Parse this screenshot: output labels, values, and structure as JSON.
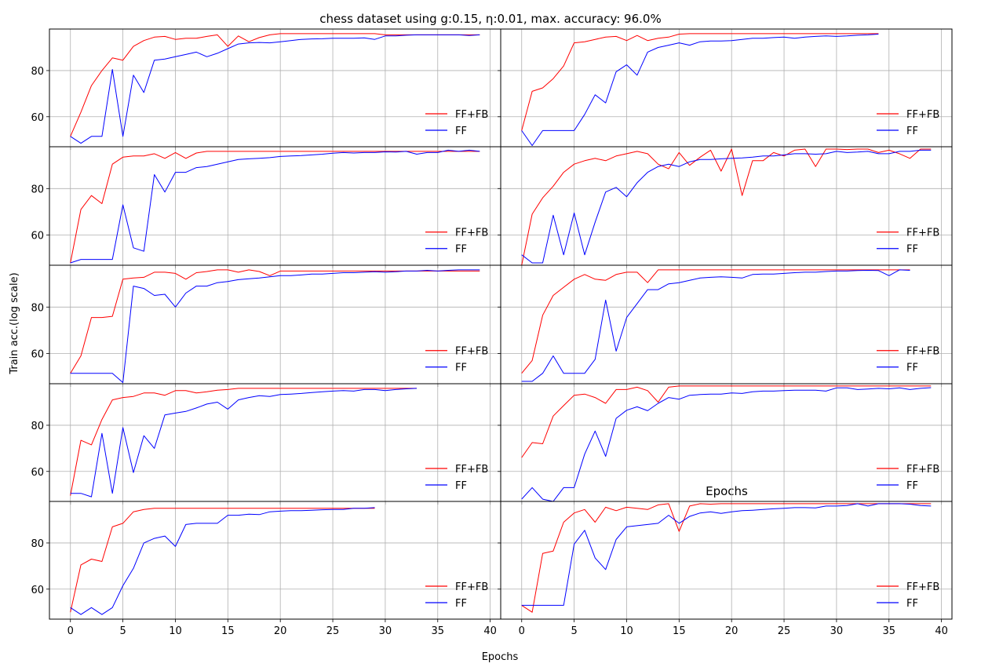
{
  "figure": {
    "title": "chess dataset using g:0.15, η:0.01, max. accuracy: 96.0%",
    "ylabel": "Train acc.(log scale)",
    "xlabel": "Epochs",
    "inner_label": "Epochs",
    "colors": {
      "ffb": "#ff0000",
      "ff": "#0000ff",
      "grid": "#b0b0b0",
      "axis": "#000000"
    }
  },
  "chart_data": {
    "type": "line",
    "xlim": [
      -2,
      41
    ],
    "ylim": [
      47,
      98
    ],
    "x_ticks": [
      0,
      5,
      10,
      15,
      20,
      25,
      30,
      35,
      40
    ],
    "y_ticks": [
      60,
      80
    ],
    "grid": true,
    "legend": [
      "FF+FB",
      "FF"
    ],
    "panels": [
      {
        "series": [
          {
            "name": "FF+FB",
            "y": [
              51.5,
              62,
              73.5,
              80,
              85.5,
              84.5,
              90.5,
              93,
              94.5,
              94.8,
              93.5,
              94,
              94,
              94.8,
              95.5,
              90.5,
              95,
              92.5,
              94.3,
              95.5,
              96,
              96,
              96,
              96,
              96,
              96,
              96,
              96,
              96,
              96,
              95.5,
              95.5,
              95.5,
              95.5,
              95.5,
              95.5,
              95.5,
              95.5,
              95.5,
              95.5
            ]
          },
          {
            "name": "FF",
            "y": [
              51.5,
              48.5,
              51.5,
              51.5,
              80.5,
              51.5,
              78,
              70.5,
              84.5,
              85,
              86,
              87,
              88,
              86,
              87.5,
              89.5,
              91.5,
              92,
              92.2,
              92,
              92.5,
              93,
              93.5,
              93.7,
              93.8,
              94,
              94,
              94,
              94.2,
              93.5,
              95,
              95,
              95.3,
              95.5,
              95.5,
              95.5,
              95.5,
              95.5,
              95.2,
              95.5
            ]
          }
        ],
        "legend_y": 66
      },
      {
        "series": [
          {
            "name": "FF+FB",
            "y": [
              54,
              71,
              72.5,
              76.5,
              82,
              92,
              92.5,
              93.5,
              94.5,
              94.8,
              93,
              95.2,
              93,
              94,
              94.5,
              95.8,
              96,
              96,
              96,
              96,
              96,
              96,
              96,
              96,
              96,
              96,
              96,
              96,
              96,
              96,
              96,
              96,
              96,
              96,
              96
            ]
          },
          {
            "name": "FF",
            "y": [
              54,
              47.5,
              54,
              54,
              54,
              54,
              61,
              69.5,
              66,
              79.5,
              82.5,
              78,
              88,
              90,
              91,
              92,
              91,
              92.5,
              92.8,
              92.8,
              93,
              93.5,
              94,
              94,
              94.3,
              94.5,
              94,
              94.5,
              94.8,
              95,
              94.8,
              95,
              95.3,
              95.5,
              95.8
            ]
          }
        ],
        "legend_y": 66
      },
      {
        "series": [
          {
            "name": "FF+FB",
            "y": [
              48,
              71,
              77,
              73.5,
              90.5,
              93.5,
              94,
              94,
              95,
              93,
              95.5,
              93,
              95.3,
              96,
              96,
              96,
              96,
              96,
              96,
              96,
              96,
              96,
              96,
              96,
              96,
              96,
              96,
              96,
              96,
              96,
              96,
              96,
              96,
              96,
              96,
              96,
              96,
              96,
              96,
              96
            ]
          },
          {
            "name": "FF",
            "y": [
              48,
              49.5,
              49.5,
              49.5,
              49.5,
              73,
              54.5,
              53,
              86,
              78.5,
              87,
              87,
              89,
              89.5,
              90.5,
              91.5,
              92.5,
              92.8,
              93,
              93.3,
              93.8,
              94,
              94.2,
              94.5,
              94.8,
              95.2,
              95.5,
              95.3,
              95.5,
              95.5,
              95.8,
              95.7,
              96,
              94.8,
              95.5,
              95.5,
              96.5,
              96,
              96.5,
              96
            ]
          }
        ],
        "legend_y": 66
      },
      {
        "series": [
          {
            "name": "FF+FB",
            "y": [
              47,
              69,
              76,
              81,
              87,
              90.5,
              92,
              93,
              92,
              94,
              95,
              96,
              95,
              90.5,
              88.5,
              95.5,
              90,
              93.5,
              96.5,
              87.5,
              97,
              77,
              92,
              92,
              95.5,
              94,
              96.5,
              97,
              89.5,
              97,
              97,
              96.8,
              97,
              97,
              95.5,
              96.5,
              95,
              93,
              97,
              97
            ]
          },
          {
            "name": "FF",
            "y": [
              51.5,
              48,
              48,
              68.5,
              51.5,
              69.5,
              51.5,
              65.5,
              78.5,
              80.5,
              76.5,
              82.5,
              87,
              89.5,
              90.5,
              89.5,
              91.5,
              92.5,
              92.5,
              92.8,
              93,
              93.2,
              93.5,
              94,
              94,
              94.5,
              95,
              95,
              94.8,
              95,
              96,
              95.5,
              95.7,
              96,
              95,
              95,
              96,
              96,
              96.5,
              96.5
            ]
          }
        ],
        "legend_y": 66
      },
      {
        "series": [
          {
            "name": "FF+FB",
            "y": [
              51.5,
              59,
              75.5,
              75.5,
              76,
              92,
              92.5,
              92.8,
              95,
              95,
              94.5,
              92,
              94.8,
              95.3,
              96,
              96,
              95,
              96,
              95.3,
              93.5,
              95.5,
              95.5,
              95.5,
              95.5,
              95.5,
              95.5,
              95.5,
              95.5,
              95.5,
              95.5,
              95.5,
              95.5,
              95.5,
              95.5,
              95.5,
              95.5,
              95.5,
              95.5,
              95.5,
              95.5
            ]
          },
          {
            "name": "FF",
            "y": [
              51.5,
              51.5,
              51.5,
              51.5,
              51.5,
              47.5,
              89,
              88,
              85,
              85.5,
              80,
              86,
              89,
              89,
              90.5,
              91,
              91.8,
              92.2,
              92.5,
              93,
              93.5,
              93.5,
              93.8,
              94.2,
              94.2,
              94.5,
              94.8,
              94.8,
              95,
              95.2,
              95,
              95.2,
              95.5,
              95.5,
              95.8,
              95.5,
              95.8,
              96,
              96,
              96
            ]
          }
        ],
        "legend_y": 66
      },
      {
        "series": [
          {
            "name": "FF+FB",
            "y": [
              51.5,
              57,
              76.5,
              85,
              88.5,
              92,
              94,
              92,
              91.5,
              94,
              95,
              95,
              90.5,
              96,
              96,
              96,
              96,
              96,
              96,
              96,
              96,
              96,
              96,
              96,
              96,
              96,
              96,
              96,
              96,
              96,
              96,
              96,
              96,
              96,
              96,
              96,
              96,
              96
            ]
          },
          {
            "name": "FF",
            "y": [
              48,
              48,
              51.5,
              59,
              51.5,
              51.5,
              51.5,
              57.5,
              83,
              61,
              75.5,
              81.5,
              87.5,
              87.5,
              90,
              90.5,
              91.5,
              92.5,
              92.8,
              93,
              92.8,
              92.5,
              94,
              94.2,
              94.2,
              94.5,
              94.8,
              95,
              95,
              95.3,
              95.5,
              95.5,
              95.7,
              95.8,
              95.7,
              93.5,
              96,
              95.8
            ]
          }
        ],
        "legend_y": 66
      },
      {
        "series": [
          {
            "name": "FF+FB",
            "y": [
              49.5,
              73.5,
              71.5,
              82.5,
              91,
              92,
              92.5,
              94,
              94,
              93,
              95,
              95,
              94,
              94.5,
              95.2,
              95.5,
              96,
              96,
              96,
              96,
              96,
              96,
              96,
              96,
              96,
              96,
              96,
              96,
              96,
              96,
              96,
              96,
              96,
              96
            ]
          },
          {
            "name": "FF",
            "y": [
              50.5,
              50.5,
              49,
              76.5,
              50.5,
              79,
              59.5,
              75.5,
              70,
              84.5,
              85.3,
              86,
              87.5,
              89.2,
              90,
              87,
              91,
              92,
              92.8,
              92.5,
              93.3,
              93.5,
              93.8,
              94.2,
              94.5,
              94.8,
              95,
              94.8,
              95.5,
              95.5,
              95,
              95.5,
              95.8,
              96
            ]
          }
        ],
        "legend_y": 83
      },
      {
        "series": [
          {
            "name": "FF+FB",
            "y": [
              66,
              72.5,
              72,
              84,
              88.5,
              93,
              93.5,
              92,
              89.5,
              95.5,
              95.5,
              96.5,
              95,
              90,
              96.5,
              97,
              97,
              97,
              97,
              97,
              97,
              97,
              97,
              97,
              97,
              97,
              97,
              97,
              97,
              97,
              97,
              97,
              97,
              97,
              97,
              97,
              97,
              97,
              97,
              97
            ]
          },
          {
            "name": "FF",
            "y": [
              48,
              53,
              48,
              47,
              53,
              53,
              67.5,
              77.5,
              66.5,
              83,
              86.5,
              88,
              86.3,
              89.5,
              92,
              91.3,
              93,
              93.3,
              93.5,
              93.5,
              94,
              93.8,
              94.5,
              94.8,
              94.8,
              95,
              95.2,
              95.2,
              95.2,
              94.8,
              96.2,
              96.2,
              95.5,
              95.7,
              96,
              95.8,
              96.2,
              95.5,
              96,
              96.3
            ]
          }
        ],
        "legend_y": 66
      },
      {
        "series": [
          {
            "name": "FF+FB",
            "y": [
              50,
              70.5,
              73,
              72,
              87,
              88.5,
              93.5,
              94.5,
              95,
              95,
              95,
              95,
              95,
              95,
              95,
              95,
              95,
              95,
              95,
              95,
              95,
              95,
              95,
              95,
              95,
              95,
              95,
              95,
              95,
              95
            ]
          },
          {
            "name": "FF",
            "y": [
              52,
              49,
              52,
              49,
              52,
              61.5,
              69,
              80,
              82,
              83,
              78.5,
              88,
              88.5,
              88.5,
              88.5,
              92,
              92,
              92.5,
              92.3,
              93.5,
              93.8,
              94,
              94,
              94.2,
              94.4,
              94.5,
              94.5,
              95,
              95,
              95.3
            ]
          }
        ],
        "legend_y": 83
      },
      {
        "series": [
          {
            "name": "FF+FB",
            "y": [
              53,
              50,
              75.5,
              76.5,
              89,
              93,
              94.5,
              89,
              95.5,
              94,
              95.5,
              95,
              94.5,
              96.5,
              97,
              85,
              96,
              97,
              96.8,
              97,
              97,
              97,
              97,
              97,
              97,
              97,
              97,
              97,
              97,
              97,
              97,
              97,
              97,
              97,
              97,
              97,
              97,
              97,
              97,
              97
            ]
          },
          {
            "name": "FF",
            "y": [
              53,
              53,
              53,
              53,
              53,
              79.5,
              85.5,
              73.5,
              68.5,
              81.5,
              87,
              87.5,
              88,
              88.5,
              92,
              88.5,
              91.5,
              93,
              93.5,
              92.8,
              93.5,
              94,
              94.2,
              94.5,
              94.8,
              95,
              95.3,
              95.3,
              95.2,
              96,
              96,
              96.2,
              97,
              96,
              97,
              97,
              97,
              96.8,
              96.2,
              96
            ]
          }
        ],
        "legend_y": 66
      }
    ]
  }
}
